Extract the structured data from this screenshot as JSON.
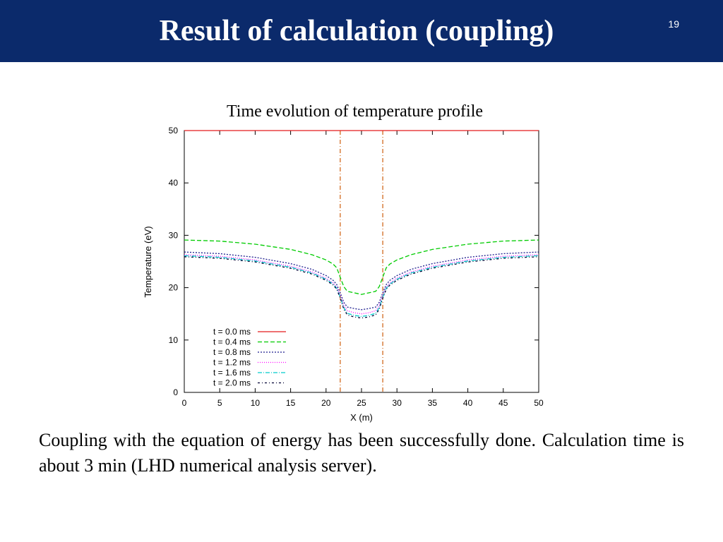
{
  "slide": {
    "title": "Result of calculation (coupling)",
    "page_number": "19",
    "caption": "Coupling with the equation of energy has been successfully done. Calculation time is about 3 min (LHD numerical analysis server)."
  },
  "chart_data": {
    "type": "line",
    "title": "Time evolution of temperature profile",
    "xlabel": "X (m)",
    "ylabel": "Temperature (eV)",
    "xlim": [
      0,
      50
    ],
    "ylim": [
      0,
      50
    ],
    "xticks": [
      0,
      5,
      10,
      15,
      20,
      25,
      30,
      35,
      40,
      45,
      50
    ],
    "yticks": [
      0,
      10,
      20,
      30,
      40,
      50
    ],
    "grid": false,
    "legend_position": "bottom-left",
    "vertical_markers": [
      {
        "x": 22,
        "color": "#d2691e"
      },
      {
        "x": 28,
        "color": "#d2691e"
      }
    ],
    "series": [
      {
        "name": "t = 0.0 ms",
        "color": "#e41a1c",
        "dash": "",
        "x": [
          0,
          50
        ],
        "y": [
          50,
          50
        ]
      },
      {
        "name": "t = 0.4 ms",
        "color": "#00cc00",
        "dash": "6,3",
        "x": [
          0,
          5,
          10,
          15,
          18,
          20,
          21,
          21.5,
          22,
          22.5,
          23,
          24,
          25,
          26,
          27,
          27.5,
          28,
          28.5,
          29,
          30,
          32,
          35,
          40,
          45,
          50
        ],
        "y": [
          29.1,
          28.9,
          28.3,
          27.3,
          26.3,
          25.3,
          24.5,
          23.8,
          22.0,
          20.2,
          19.3,
          19.0,
          18.7,
          19.0,
          19.3,
          20.2,
          22.0,
          23.8,
          24.5,
          25.3,
          26.3,
          27.3,
          28.3,
          28.9,
          29.1
        ]
      },
      {
        "name": "t = 0.8 ms",
        "color": "#1f1f8f",
        "dash": "2,2",
        "x": [
          0,
          5,
          10,
          15,
          18,
          20,
          21,
          21.5,
          22,
          22.5,
          23,
          24,
          25,
          26,
          27,
          27.5,
          28,
          28.5,
          29,
          30,
          32,
          35,
          40,
          45,
          50
        ],
        "y": [
          26.8,
          26.5,
          25.8,
          24.6,
          23.5,
          22.3,
          21.4,
          20.6,
          19.0,
          17.2,
          16.3,
          16.0,
          15.8,
          16.0,
          16.3,
          17.2,
          19.0,
          20.6,
          21.4,
          22.3,
          23.5,
          24.6,
          25.8,
          26.5,
          26.8
        ]
      },
      {
        "name": "t = 1.2 ms",
        "color": "#ff00ff",
        "dash": "1,2",
        "x": [
          0,
          5,
          10,
          15,
          18,
          20,
          21,
          21.5,
          22,
          22.5,
          23,
          24,
          25,
          26,
          27,
          27.5,
          28,
          28.5,
          29,
          30,
          32,
          35,
          40,
          45,
          50
        ],
        "y": [
          26.3,
          26.0,
          25.3,
          24.1,
          23.0,
          21.8,
          20.9,
          20.1,
          18.5,
          16.6,
          15.6,
          15.2,
          15.0,
          15.2,
          15.6,
          16.6,
          18.5,
          20.1,
          20.9,
          21.8,
          23.0,
          24.1,
          25.3,
          26.0,
          26.3
        ]
      },
      {
        "name": "t = 1.6 ms",
        "color": "#00cccc",
        "dash": "6,2,1,2",
        "x": [
          0,
          5,
          10,
          15,
          18,
          20,
          21,
          21.5,
          22,
          22.5,
          23,
          24,
          25,
          26,
          27,
          27.5,
          28,
          28.5,
          29,
          30,
          32,
          35,
          40,
          45,
          50
        ],
        "y": [
          26.1,
          25.8,
          25.1,
          23.9,
          22.8,
          21.6,
          20.7,
          19.9,
          18.2,
          16.2,
          15.1,
          14.7,
          14.5,
          14.7,
          15.1,
          16.2,
          18.2,
          19.9,
          20.7,
          21.6,
          22.8,
          23.9,
          25.1,
          25.8,
          26.1
        ]
      },
      {
        "name": "t = 2.0 ms",
        "color": "#000033",
        "dash": "3,3,1,3",
        "x": [
          0,
          5,
          10,
          15,
          18,
          20,
          21,
          21.5,
          22,
          22.5,
          23,
          24,
          25,
          26,
          27,
          27.5,
          28,
          28.5,
          29,
          30,
          32,
          35,
          40,
          45,
          50
        ],
        "y": [
          25.9,
          25.6,
          24.9,
          23.7,
          22.6,
          21.4,
          20.5,
          19.7,
          18.0,
          15.9,
          14.8,
          14.4,
          14.2,
          14.4,
          14.8,
          15.9,
          18.0,
          19.7,
          20.5,
          21.4,
          22.6,
          23.7,
          24.9,
          25.6,
          25.9
        ]
      }
    ]
  }
}
